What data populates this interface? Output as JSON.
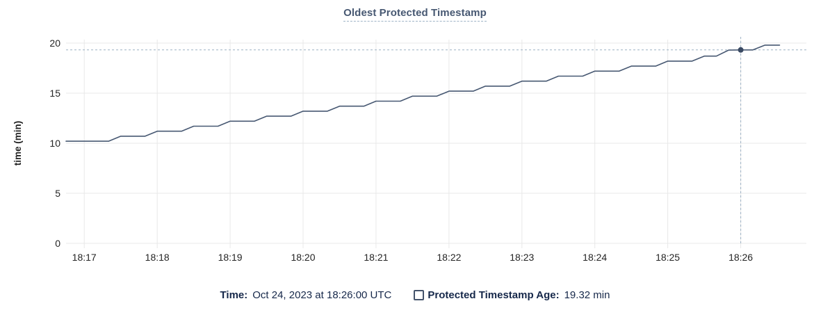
{
  "title": "Oldest Protected Timestamp",
  "legend": {
    "time_label": "Time:",
    "time_value": "Oct 24, 2023 at 18:26:00 UTC",
    "series_label": "Protected Timestamp Age:",
    "series_value": "19.32 min"
  },
  "colors": {
    "line": "#475872",
    "marker": "#3a4a63",
    "grid": "#e8e8e8",
    "crosshair": "#9cb1c4",
    "title_text": "#475872",
    "title_underline": "#9eb2c6",
    "legend_text": "#16284a",
    "checkbox_border": "#44536b",
    "tick_text": "#242424",
    "axis_title_text": "#242424"
  },
  "chart_data": {
    "type": "line",
    "title": "Oldest Protected Timestamp",
    "xlabel": "",
    "ylabel": "time (min)",
    "ylim": [
      0,
      20
    ],
    "yticks": [
      0,
      5,
      10,
      15,
      20
    ],
    "xticks": [
      "18:17",
      "18:18",
      "18:19",
      "18:20",
      "18:21",
      "18:22",
      "18:23",
      "18:24",
      "18:25",
      "18:26"
    ],
    "x_domain": [
      "18:16:45",
      "18:26:54"
    ],
    "grid": true,
    "legend_position": "bottom",
    "series": [
      {
        "name": "Protected Timestamp Age",
        "unit": "min",
        "points": [
          [
            "18:16:45",
            10.2
          ],
          [
            "18:17:20",
            10.2
          ],
          [
            "18:17:30",
            10.7
          ],
          [
            "18:17:50",
            10.7
          ],
          [
            "18:18:00",
            11.2
          ],
          [
            "18:18:20",
            11.2
          ],
          [
            "18:18:30",
            11.7
          ],
          [
            "18:18:50",
            11.7
          ],
          [
            "18:19:00",
            12.2
          ],
          [
            "18:19:20",
            12.2
          ],
          [
            "18:19:30",
            12.7
          ],
          [
            "18:19:50",
            12.7
          ],
          [
            "18:20:00",
            13.2
          ],
          [
            "18:20:20",
            13.2
          ],
          [
            "18:20:30",
            13.7
          ],
          [
            "18:20:50",
            13.7
          ],
          [
            "18:21:00",
            14.2
          ],
          [
            "18:21:20",
            14.2
          ],
          [
            "18:21:30",
            14.7
          ],
          [
            "18:21:50",
            14.7
          ],
          [
            "18:22:00",
            15.2
          ],
          [
            "18:22:20",
            15.2
          ],
          [
            "18:22:30",
            15.7
          ],
          [
            "18:22:50",
            15.7
          ],
          [
            "18:23:00",
            16.2
          ],
          [
            "18:23:20",
            16.2
          ],
          [
            "18:23:30",
            16.7
          ],
          [
            "18:23:50",
            16.7
          ],
          [
            "18:24:00",
            17.2
          ],
          [
            "18:24:20",
            17.2
          ],
          [
            "18:24:30",
            17.7
          ],
          [
            "18:24:50",
            17.7
          ],
          [
            "18:25:00",
            18.2
          ],
          [
            "18:25:20",
            18.2
          ],
          [
            "18:25:30",
            18.7
          ],
          [
            "18:25:40",
            18.7
          ],
          [
            "18:25:50",
            19.3
          ],
          [
            "18:26:00",
            19.32
          ],
          [
            "18:26:10",
            19.32
          ],
          [
            "18:26:20",
            19.8
          ],
          [
            "18:26:32",
            19.8
          ]
        ]
      }
    ],
    "hover": {
      "time": "18:26:00",
      "value": 19.32
    }
  }
}
